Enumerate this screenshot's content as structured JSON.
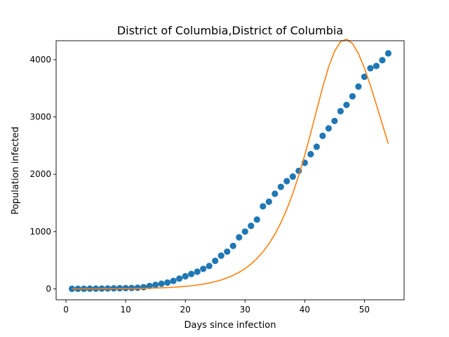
{
  "chart_data": {
    "type": "scatter",
    "title": "District of Columbia,District of Columbia",
    "xlabel": "Days since infection",
    "ylabel": "Population infected",
    "xlim": [
      -1.65,
      56.65
    ],
    "ylim": [
      -190,
      4330
    ],
    "xticks": [
      0,
      10,
      20,
      30,
      40,
      50
    ],
    "yticks": [
      0,
      1000,
      2000,
      3000,
      4000
    ],
    "grid": false,
    "colors": {
      "scatter": "#1f77b4",
      "line": "#ff7f0e",
      "axes": "#000000"
    },
    "series": [
      {
        "kind": "scatter",
        "x": [
          1,
          2,
          3,
          4,
          5,
          6,
          7,
          8,
          9,
          10,
          11,
          12,
          13,
          14,
          15,
          16,
          17,
          18,
          19,
          20,
          21,
          22,
          23,
          24,
          25,
          26,
          27,
          28,
          29,
          30,
          31,
          32,
          33,
          34,
          35,
          36,
          37,
          38,
          39,
          40,
          41,
          42,
          43,
          44,
          45,
          46,
          47,
          48,
          49,
          50,
          51,
          52,
          53,
          54
        ],
        "y": [
          1,
          2,
          2,
          4,
          5,
          6,
          8,
          10,
          12,
          14,
          16,
          20,
          30,
          50,
          70,
          90,
          110,
          140,
          180,
          220,
          260,
          300,
          350,
          400,
          490,
          580,
          650,
          750,
          900,
          1000,
          1100,
          1210,
          1440,
          1520,
          1660,
          1780,
          1880,
          1960,
          2060,
          2200,
          2350,
          2480,
          2670,
          2800,
          2930,
          3100,
          3210,
          3360,
          3530,
          3700,
          3850,
          3890,
          3990,
          4110
        ]
      },
      {
        "kind": "line",
        "x": [
          1,
          2,
          3,
          4,
          5,
          6,
          7,
          8,
          9,
          10,
          11,
          12,
          13,
          14,
          15,
          16,
          17,
          18,
          19,
          20,
          21,
          22,
          23,
          24,
          25,
          26,
          27,
          28,
          29,
          30,
          31,
          32,
          33,
          34,
          35,
          36,
          37,
          38,
          39,
          40,
          41,
          42,
          43,
          44,
          45,
          46,
          47,
          48,
          49,
          50,
          51,
          52,
          53,
          54
        ],
        "y": [
          0,
          0,
          1,
          1,
          1,
          2,
          2,
          3,
          4,
          5,
          6,
          8,
          10,
          12,
          15,
          19,
          24,
          29,
          36,
          45,
          55,
          68,
          84,
          103,
          127,
          156,
          192,
          236,
          289,
          354,
          433,
          530,
          646,
          786,
          954,
          1154,
          1390,
          1664,
          1979,
          2332,
          2717,
          3120,
          3516,
          3872,
          4147,
          4313,
          4356,
          4280,
          4105,
          3853,
          3549,
          3215,
          2872,
          2535
        ]
      }
    ]
  }
}
